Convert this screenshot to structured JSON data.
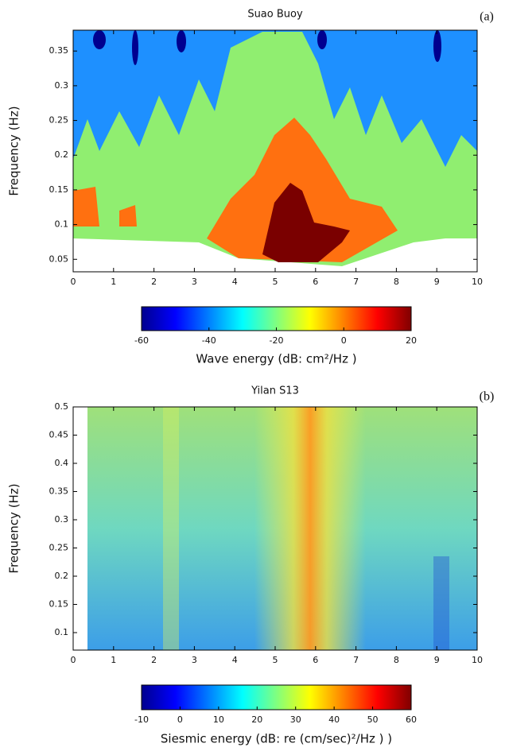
{
  "chart_data": [
    {
      "type": "heatmap",
      "title": "Suao Buoy",
      "panel_label": "(a)",
      "ylabel": "Frequency (Hz)",
      "xlim": [
        0,
        10
      ],
      "xticks": [
        0,
        1,
        2,
        3,
        4,
        5,
        6,
        7,
        8,
        9,
        10
      ],
      "ylim": [
        0.032,
        0.38
      ],
      "yticks": [
        0.05,
        0.1,
        0.15,
        0.2,
        0.25,
        0.3,
        0.35
      ],
      "colorbar": {
        "label": "Wave energy (dB: cm²/Hz )",
        "lim": [
          -60,
          20
        ],
        "ticks": [
          -60,
          -40,
          -20,
          0,
          20
        ]
      }
    },
    {
      "type": "heatmap",
      "title": "Yilan S13",
      "panel_label": "(b)",
      "ylabel": "Frequency (Hz)",
      "xlim": [
        0,
        10
      ],
      "xticks": [
        0,
        1,
        2,
        3,
        4,
        5,
        6,
        7,
        8,
        9,
        10
      ],
      "ylim": [
        0.069,
        0.5
      ],
      "yticks": [
        0.1,
        0.15,
        0.2,
        0.25,
        0.3,
        0.35,
        0.4,
        0.45,
        0.5
      ],
      "colorbar": {
        "label": "Siesmic energy (dB: re (cm/sec)²/Hz ) )",
        "lim": [
          -10,
          60
        ],
        "ticks": [
          -10,
          0,
          10,
          20,
          30,
          40,
          50,
          60
        ]
      }
    }
  ]
}
